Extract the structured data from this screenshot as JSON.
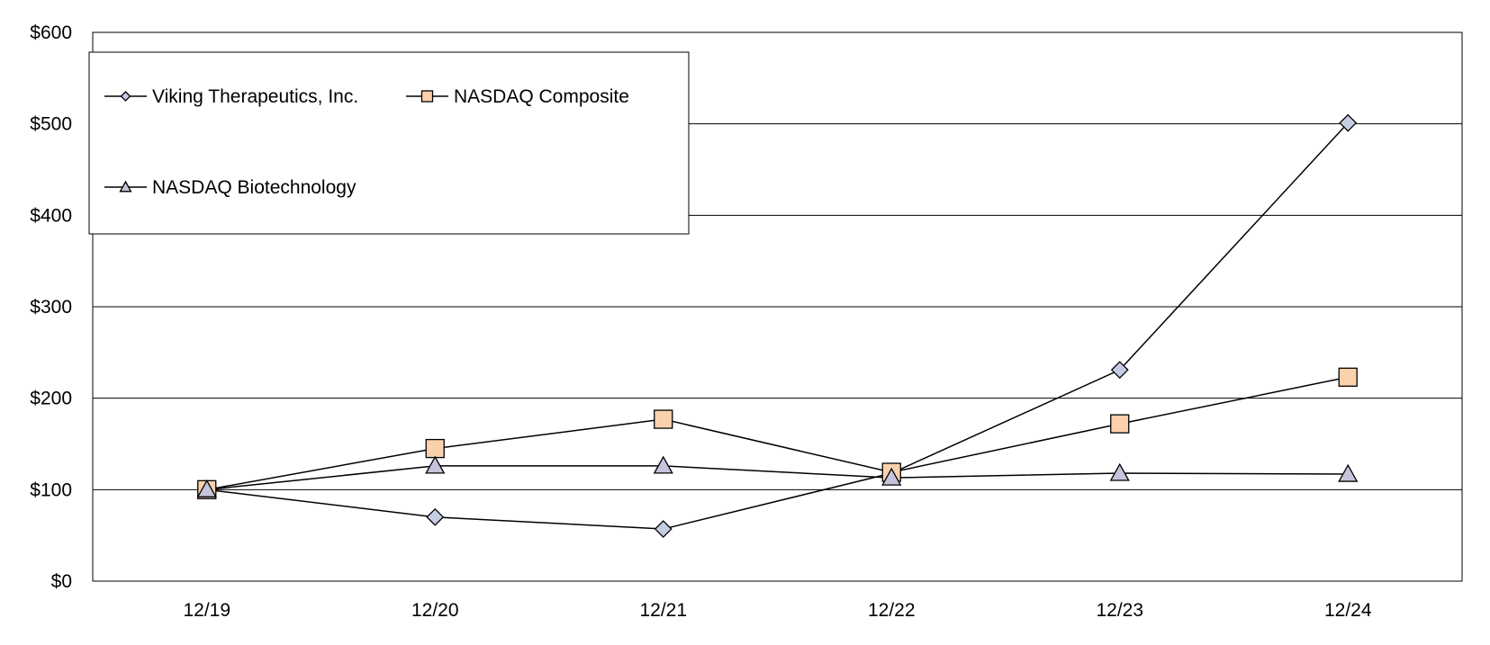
{
  "chart_data": {
    "type": "line",
    "title": "",
    "xlabel": "",
    "ylabel": "",
    "categories": [
      "12/19",
      "12/20",
      "12/21",
      "12/22",
      "12/23",
      "12/24"
    ],
    "ylim": [
      0,
      600
    ],
    "yticks": [
      "$0",
      "$100",
      "$200",
      "$300",
      "$400",
      "$500",
      "$600"
    ],
    "grid": true,
    "legend_position": "top-left",
    "series": [
      {
        "name": "Viking Therapeutics, Inc.",
        "marker": "diamond",
        "color": "#c5cde3",
        "values": [
          100,
          70,
          57,
          118,
          231,
          501
        ]
      },
      {
        "name": "NASDAQ Composite",
        "marker": "square",
        "color": "#fbd1ad",
        "values": [
          100,
          145,
          177,
          119,
          172,
          223
        ]
      },
      {
        "name": "NASDAQ Biotechnology",
        "marker": "triangle",
        "color": "#c6c3dc",
        "values": [
          100,
          126,
          126,
          113,
          118,
          117
        ]
      }
    ]
  }
}
